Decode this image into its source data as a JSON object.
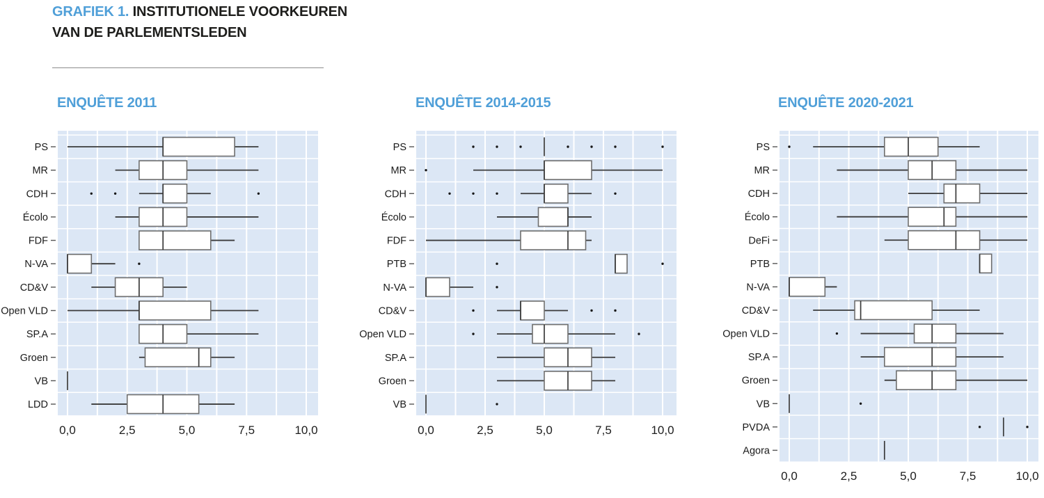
{
  "header": {
    "label": "GRAFIEK 1.",
    "title_line1": "INSTITUTIONELE VOORKEUREN",
    "title_line2": "VAN DE PARLEMENTSLEDEN"
  },
  "colors": {
    "accent_blue": "#4f9fd8",
    "plot_background": "#dce7f5",
    "grid": "#ffffff",
    "box_fill": "#ffffff",
    "box_stroke": "#6e6e6e",
    "line": "#3a3a3a",
    "outlier": "#161616",
    "text": "#1d1d1b"
  },
  "chart_data": [
    {
      "type": "boxplot-horizontal",
      "title": "ENQUÊTE 2011",
      "xlim": [
        0,
        10
      ],
      "grid": "white lines on light-blue panel, vertical every 1.25, horizontal between rows",
      "x_ticks": {
        "values": [
          0,
          2.5,
          5,
          7.5,
          10
        ],
        "labels": [
          "0,0",
          "2,5",
          "5,0",
          "7,5",
          "10,0"
        ]
      },
      "categories": [
        "PS",
        "MR",
        "CDH",
        "Écolo",
        "FDF",
        "N-VA",
        "CD&V",
        "Open VLD",
        "SP.A",
        "Groen",
        "VB",
        "LDD"
      ],
      "boxes": [
        {
          "party": "PS",
          "min": 0,
          "q1": 4,
          "median": 4,
          "q3": 7,
          "max": 8,
          "outliers": []
        },
        {
          "party": "MR",
          "min": 2,
          "q1": 3,
          "median": 4,
          "q3": 5,
          "max": 8,
          "outliers": []
        },
        {
          "party": "CDH",
          "min": 3,
          "q1": 4,
          "median": 4,
          "q3": 5,
          "max": 6,
          "outliers": [
            1,
            2,
            8
          ]
        },
        {
          "party": "Écolo",
          "min": 2,
          "q1": 3,
          "median": 4,
          "q3": 5,
          "max": 8,
          "outliers": []
        },
        {
          "party": "FDF",
          "min": 3,
          "q1": 3,
          "median": 4,
          "q3": 6,
          "max": 7,
          "outliers": []
        },
        {
          "party": "N-VA",
          "min": 0,
          "q1": 0,
          "median": 0,
          "q3": 1,
          "max": 2,
          "outliers": [
            3
          ]
        },
        {
          "party": "CD&V",
          "min": 1,
          "q1": 2,
          "median": 3,
          "q3": 4,
          "max": 5,
          "outliers": []
        },
        {
          "party": "Open VLD",
          "min": 0,
          "q1": 3,
          "median": 3,
          "q3": 6,
          "max": 8,
          "outliers": []
        },
        {
          "party": "SP.A",
          "min": 3,
          "q1": 3,
          "median": 4,
          "q3": 5,
          "max": 8,
          "outliers": []
        },
        {
          "party": "Groen",
          "min": 3,
          "q1": 3.25,
          "median": 5.5,
          "q3": 6,
          "max": 7,
          "outliers": []
        },
        {
          "party": "VB",
          "min": 0,
          "q1": 0,
          "median": 0,
          "q3": 0,
          "max": 0,
          "outliers": []
        },
        {
          "party": "LDD",
          "min": 1,
          "q1": 2.5,
          "median": 4,
          "q3": 5.5,
          "max": 7,
          "outliers": []
        }
      ]
    },
    {
      "type": "boxplot-horizontal",
      "title": "ENQUÊTE 2014-2015",
      "xlim": [
        0,
        10
      ],
      "grid": "white lines on light-blue panel, vertical every 1.25, horizontal between rows",
      "x_ticks": {
        "values": [
          0,
          2.5,
          5,
          7.5,
          10
        ],
        "labels": [
          "0,0",
          "2,5",
          "5,0",
          "7,5",
          "10,0"
        ]
      },
      "categories": [
        "PS",
        "MR",
        "CDH",
        "Écolo",
        "FDF",
        "PTB",
        "N-VA",
        "CD&V",
        "Open VLD",
        "SP.A",
        "Groen",
        "VB"
      ],
      "boxes": [
        {
          "party": "PS",
          "min": 5,
          "q1": 5,
          "median": 5,
          "q3": 5,
          "max": 5,
          "outliers": [
            2,
            3,
            4,
            6,
            7,
            8,
            10
          ]
        },
        {
          "party": "MR",
          "min": 2,
          "q1": 5,
          "median": 5,
          "q3": 7,
          "max": 10,
          "outliers": [
            0
          ]
        },
        {
          "party": "CDH",
          "min": 4,
          "q1": 5,
          "median": 5,
          "q3": 6,
          "max": 7,
          "outliers": [
            1,
            2,
            3,
            8
          ]
        },
        {
          "party": "Écolo",
          "min": 3,
          "q1": 4.75,
          "median": 6,
          "q3": 6,
          "max": 7,
          "outliers": []
        },
        {
          "party": "FDF",
          "min": 0,
          "q1": 4,
          "median": 6,
          "q3": 6.75,
          "max": 7,
          "outliers": []
        },
        {
          "party": "PTB",
          "min": 8,
          "q1": 8,
          "median": 8,
          "q3": 8.5,
          "max": 8.5,
          "outliers": [
            3,
            10
          ]
        },
        {
          "party": "N-VA",
          "min": 0,
          "q1": 0,
          "median": 0,
          "q3": 1,
          "max": 2,
          "outliers": [
            3
          ]
        },
        {
          "party": "CD&V",
          "min": 3,
          "q1": 4,
          "median": 4,
          "q3": 5,
          "max": 6,
          "outliers": [
            2,
            7,
            8
          ]
        },
        {
          "party": "Open VLD",
          "min": 3,
          "q1": 4.5,
          "median": 5,
          "q3": 6,
          "max": 8,
          "outliers": [
            2,
            9
          ]
        },
        {
          "party": "SP.A",
          "min": 3,
          "q1": 5,
          "median": 6,
          "q3": 7,
          "max": 8,
          "outliers": []
        },
        {
          "party": "Groen",
          "min": 3,
          "q1": 5,
          "median": 6,
          "q3": 7,
          "max": 8,
          "outliers": []
        },
        {
          "party": "VB",
          "min": 0,
          "q1": 0,
          "median": 0,
          "q3": 0,
          "max": 0,
          "outliers": [
            3
          ]
        }
      ]
    },
    {
      "type": "boxplot-horizontal",
      "title": "ENQUÊTE 2020-2021",
      "xlim": [
        0,
        10
      ],
      "grid": "white lines on light-blue panel, vertical every 1.25, horizontal between rows",
      "x_ticks": {
        "values": [
          0,
          2.5,
          5,
          7.5,
          10
        ],
        "labels": [
          "0,0",
          "2,5",
          "5,0",
          "7,5",
          "10,0"
        ]
      },
      "categories": [
        "PS",
        "MR",
        "CDH",
        "Écolo",
        "DeFi",
        "PTB",
        "N-VA",
        "CD&V",
        "Open VLD",
        "SP.A",
        "Groen",
        "VB",
        "PVDA",
        "Agora"
      ],
      "boxes": [
        {
          "party": "PS",
          "min": 1,
          "q1": 4,
          "median": 5,
          "q3": 6.25,
          "max": 8,
          "outliers": [
            0
          ]
        },
        {
          "party": "MR",
          "min": 2,
          "q1": 5,
          "median": 6,
          "q3": 7,
          "max": 10,
          "outliers": []
        },
        {
          "party": "CDH",
          "min": 5,
          "q1": 6.5,
          "median": 7,
          "q3": 8,
          "max": 10,
          "outliers": []
        },
        {
          "party": "Écolo",
          "min": 2,
          "q1": 5,
          "median": 6.5,
          "q3": 7,
          "max": 10,
          "outliers": []
        },
        {
          "party": "DeFi",
          "min": 4,
          "q1": 5,
          "median": 7,
          "q3": 8,
          "max": 10,
          "outliers": []
        },
        {
          "party": "PTB",
          "min": 8,
          "q1": 8,
          "median": 8,
          "q3": 8.5,
          "max": 8.5,
          "outliers": []
        },
        {
          "party": "N-VA",
          "min": 0,
          "q1": 0,
          "median": 0,
          "q3": 1.5,
          "max": 2,
          "outliers": []
        },
        {
          "party": "CD&V",
          "min": 1,
          "q1": 2.75,
          "median": 3,
          "q3": 6,
          "max": 8,
          "outliers": []
        },
        {
          "party": "Open VLD",
          "min": 3,
          "q1": 5.25,
          "median": 6,
          "q3": 7,
          "max": 9,
          "outliers": [
            2
          ]
        },
        {
          "party": "SP.A",
          "min": 3,
          "q1": 4,
          "median": 6,
          "q3": 7,
          "max": 9,
          "outliers": []
        },
        {
          "party": "Groen",
          "min": 4,
          "q1": 4.5,
          "median": 6,
          "q3": 7,
          "max": 10,
          "outliers": []
        },
        {
          "party": "VB",
          "min": 0,
          "q1": 0,
          "median": 0,
          "q3": 0,
          "max": 0,
          "outliers": [
            3
          ]
        },
        {
          "party": "PVDA",
          "min": 9,
          "q1": 9,
          "median": 9,
          "q3": 9,
          "max": 9,
          "outliers": [
            8,
            10
          ]
        },
        {
          "party": "Agora",
          "min": 4,
          "q1": 4,
          "median": 4,
          "q3": 4,
          "max": 4,
          "outliers": []
        }
      ]
    }
  ]
}
